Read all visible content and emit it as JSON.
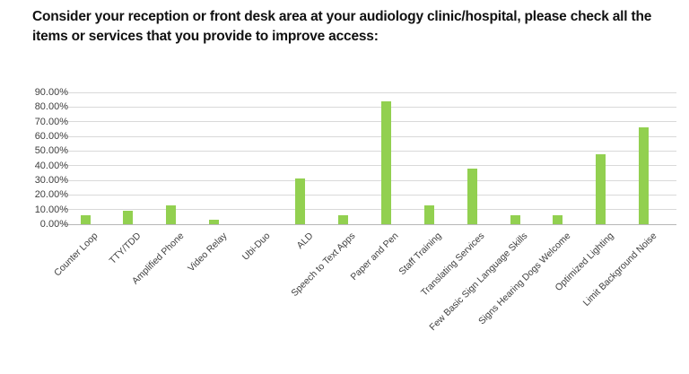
{
  "title": "Consider your reception or front desk area at your audiology clinic/hospital, please check all the items or services that you provide to improve access:",
  "chart_data": {
    "type": "bar",
    "title": "Consider your reception or front desk area at your audiology clinic/hospital, please check all the items or services that you provide to improve access:",
    "categories": [
      "Counter Loop",
      "TTY/TDD",
      "Amplified Phone",
      "Video Relay",
      "Ubi-Duo",
      "ALD",
      "Speech to Text Apps",
      "Paper and Pen",
      "Staff Training",
      "Translating Services",
      "Few Basic Sign Language Skills",
      "Signs Hearing Dogs Welcome",
      "Optimized Lighting",
      "Limit Background Noise"
    ],
    "values": [
      6,
      9,
      13,
      3,
      0,
      31,
      6,
      84,
      13,
      38,
      6,
      6,
      48,
      66
    ],
    "xlabel": "",
    "ylabel": "",
    "ylim": [
      0,
      90
    ],
    "grid": true,
    "legend": false,
    "bar_color": "#92D050",
    "gridline_color": "#d9d9d9",
    "axis_color": "#b7b7b7",
    "yticks": [
      {
        "value": 90,
        "label": "90.00%"
      },
      {
        "value": 80,
        "label": "80.00%"
      },
      {
        "value": 70,
        "label": "70.00%"
      },
      {
        "value": 60,
        "label": "60.00%"
      },
      {
        "value": 50,
        "label": "50.00%"
      },
      {
        "value": 40,
        "label": "40.00%"
      },
      {
        "value": 30,
        "label": "30.00%"
      },
      {
        "value": 20,
        "label": "20.00%"
      },
      {
        "value": 10,
        "label": "10.00%"
      },
      {
        "value": 0,
        "label": "0.00%"
      }
    ]
  }
}
